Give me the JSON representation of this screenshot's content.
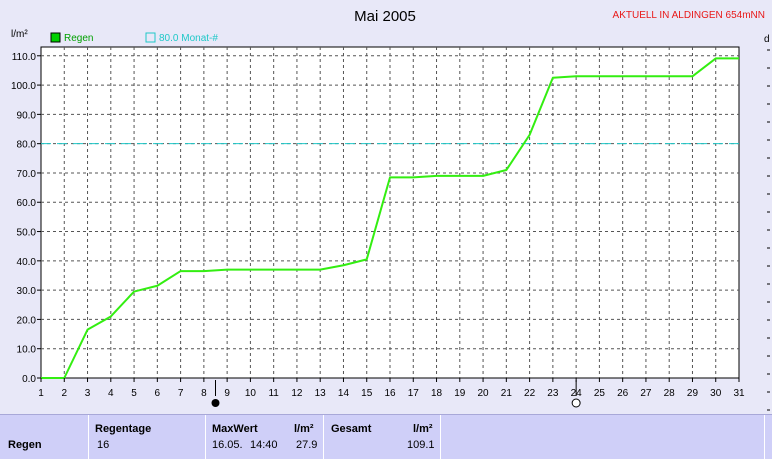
{
  "header": {
    "title": "Mai 2005",
    "station": "AKTUELL IN ALDINGEN 654mNN",
    "y_unit": "l/m²",
    "right_edge_label": "d"
  },
  "legend": [
    {
      "label": "Regen",
      "color": "#00d000"
    },
    {
      "label": "80.0 Monat-#",
      "color": "#1fc8c8"
    }
  ],
  "chart_data": {
    "type": "line",
    "title": "Mai 2005",
    "ylabel": "l/m²",
    "xlabel": "",
    "x": [
      1,
      2,
      3,
      4,
      5,
      6,
      7,
      8,
      9,
      10,
      11,
      12,
      13,
      14,
      15,
      16,
      17,
      18,
      19,
      20,
      21,
      22,
      23,
      24,
      25,
      26,
      27,
      28,
      29,
      30,
      31
    ],
    "xlim": [
      1,
      31
    ],
    "ylim": [
      0,
      113
    ],
    "y_ticks": [
      "0.0",
      "10.0",
      "20.0",
      "30.0",
      "40.0",
      "50.0",
      "60.0",
      "70.0",
      "80.0",
      "90.0",
      "100.0",
      "110.0"
    ],
    "x_ticks": [
      "1",
      "2",
      "3",
      "4",
      "5",
      "6",
      "7",
      "8",
      "9",
      "10",
      "11",
      "12",
      "13",
      "14",
      "15",
      "16",
      "17",
      "18",
      "19",
      "20",
      "21",
      "22",
      "23",
      "24",
      "25",
      "26",
      "27",
      "28",
      "29",
      "30",
      "31"
    ],
    "grid": true,
    "series": [
      {
        "name": "Regen",
        "color": "#33ee11",
        "values": [
          0.0,
          0.0,
          16.5,
          21.0,
          29.5,
          31.5,
          36.5,
          36.5,
          37.0,
          37.0,
          37.0,
          37.0,
          37.0,
          38.5,
          40.5,
          68.5,
          68.5,
          69.0,
          69.0,
          69.0,
          71.0,
          83.0,
          102.5,
          103.0,
          103.0,
          103.0,
          103.0,
          103.0,
          103.0,
          109.1,
          109.1
        ]
      }
    ],
    "reference_lines": [
      {
        "label": "80.0 Monat-#",
        "value": 80.0,
        "color": "#1fc8c8",
        "style": "dashed"
      }
    ],
    "markers": [
      {
        "x": 8.5,
        "kind": "filled-circle"
      },
      {
        "x": 24,
        "kind": "open-circle"
      }
    ],
    "legend_position": "top-left"
  },
  "stats": {
    "row_label": "Regen",
    "regentage_label": "Regentage",
    "regentage_value": "16",
    "maxwert_label": "MaxWert",
    "maxwert_unit": "l/m²",
    "maxwert_date": "16.05.",
    "maxwert_time": "14:40",
    "maxwert_value": "27.9",
    "gesamt_label": "Gesamt",
    "gesamt_unit": "l/m²",
    "gesamt_value": "109.1"
  }
}
